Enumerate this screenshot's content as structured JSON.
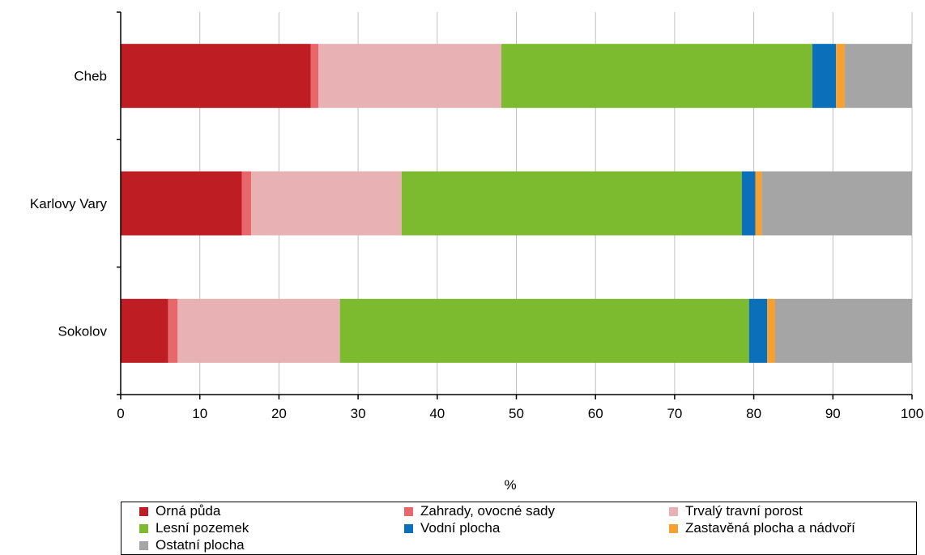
{
  "chart_data": {
    "type": "bar",
    "orientation": "horizontal",
    "stacked": true,
    "categories": [
      "Cheb",
      "Karlovy Vary",
      "Sokolov"
    ],
    "series": [
      {
        "name": "Orná půda",
        "color": "#be1e23",
        "values": [
          24.0,
          15.3,
          6.0
        ]
      },
      {
        "name": "Zahrady, ovocné sady",
        "color": "#e8676b",
        "values": [
          1.0,
          1.2,
          1.2
        ]
      },
      {
        "name": "Trvalý travní porost",
        "color": "#e8b2b4",
        "values": [
          23.1,
          19.0,
          20.5
        ]
      },
      {
        "name": "Lesní pozemek",
        "color": "#7cba2f",
        "values": [
          39.3,
          43.0,
          51.7
        ]
      },
      {
        "name": "Vodní plocha",
        "color": "#0b6fba",
        "values": [
          3.0,
          1.7,
          2.3
        ]
      },
      {
        "name": "Zastavěná plocha a nádvoří",
        "color": "#f5a031",
        "values": [
          1.1,
          0.8,
          1.0
        ]
      },
      {
        "name": "Ostatní plocha",
        "color": "#a5a5a5",
        "values": [
          8.5,
          19.0,
          17.3
        ]
      }
    ],
    "xlabel": "%",
    "ylabel": "",
    "xlim": [
      0,
      100
    ],
    "xticks": [
      0,
      10,
      20,
      30,
      40,
      50,
      60,
      70,
      80,
      90,
      100
    ],
    "grid": "vertical",
    "legend_position": "bottom"
  }
}
